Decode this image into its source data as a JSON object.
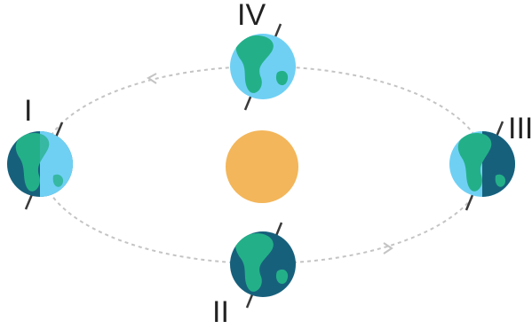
{
  "diagram": {
    "labels": {
      "position_1": "I",
      "position_2": "II",
      "position_3": "III",
      "position_4": "IV"
    },
    "colors": {
      "sun": "#f3b65a",
      "ocean_lit": "#6fd0f4",
      "ocean_dark": "#17607c",
      "land": "#23b088",
      "orbit": "#c4c4c4",
      "axis": "#3a3a3a",
      "text": "#222222"
    }
  }
}
